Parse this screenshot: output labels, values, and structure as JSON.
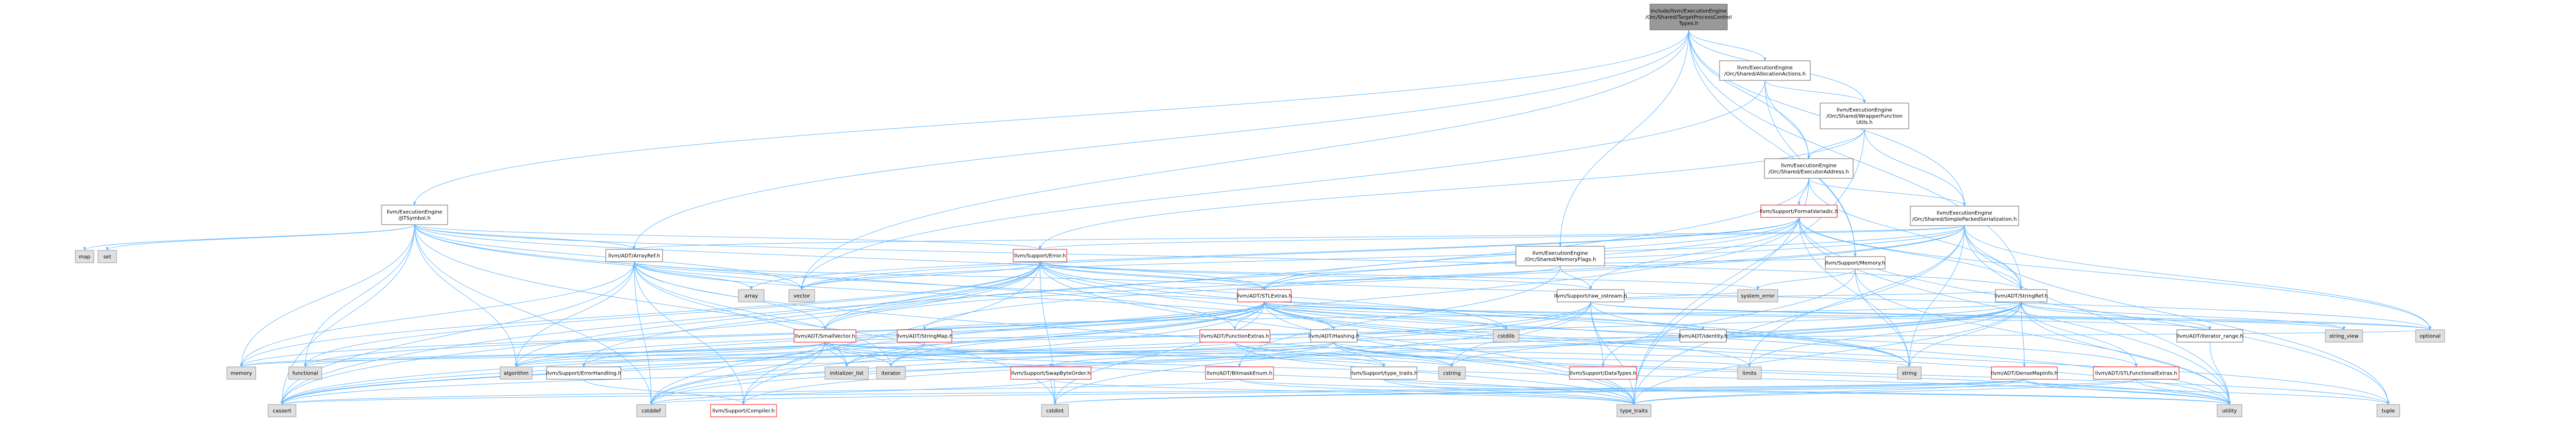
{
  "graph": {
    "colors": {
      "root_fill": "#999999",
      "node_fill": "#ffffff",
      "node_border": "#666666",
      "red_border": "#ff0000",
      "system_fill": "#e0e0e0",
      "system_border": "#999999",
      "edge": "#63b8ff"
    },
    "nodes": [
      {
        "id": "root",
        "label": "include/llvm/ExecutionEngine\n/Orc/Shared/TargetProcessControl\nTypes.h",
        "kind": "root"
      },
      {
        "id": "alloc",
        "label": "llvm/ExecutionEngine\n/Orc/Shared/AllocationActions.h",
        "kind": "normal"
      },
      {
        "id": "wrapper",
        "label": "llvm/ExecutionEngine\n/Orc/Shared/WrapperFunction\nUtils.h",
        "kind": "normal"
      },
      {
        "id": "execaddr",
        "label": "llvm/ExecutionEngine\n/Orc/Shared/ExecutorAddress.h",
        "kind": "normal"
      },
      {
        "id": "jit",
        "label": "llvm/ExecutionEngine\n/JITSymbol.h",
        "kind": "normal"
      },
      {
        "id": "simplepacked",
        "label": "llvm/ExecutionEngine\n/Orc/Shared/SimplePackedSerialization.h",
        "kind": "normal"
      },
      {
        "id": "memflags",
        "label": "llvm/ExecutionEngine\n/Orc/Shared/MemoryFlags.h",
        "kind": "normal"
      },
      {
        "id": "formatvariadic",
        "label": "llvm/Support/FormatVariadic.h",
        "kind": "red"
      },
      {
        "id": "arrayref",
        "label": "llvm/ADT/ArrayRef.h",
        "kind": "normal"
      },
      {
        "id": "error",
        "label": "llvm/Support/Error.h",
        "kind": "red"
      },
      {
        "id": "stlextras",
        "label": "llvm/ADT/STLExtras.h",
        "kind": "red"
      },
      {
        "id": "rawostream",
        "label": "llvm/Support/raw_ostream.h",
        "kind": "normal"
      },
      {
        "id": "memory",
        "label": "llvm/Support/Memory.h",
        "kind": "normal"
      },
      {
        "id": "stringref",
        "label": "llvm/ADT/StringRef.h",
        "kind": "normal"
      },
      {
        "id": "smallvector",
        "label": "llvm/ADT/SmallVector.h",
        "kind": "red"
      },
      {
        "id": "stringmap",
        "label": "llvm/ADT/StringMap.h",
        "kind": "red"
      },
      {
        "id": "functionextras",
        "label": "llvm/ADT/FunctionExtras.h",
        "kind": "red"
      },
      {
        "id": "hashing",
        "label": "llvm/ADT/Hashing.h",
        "kind": "normal"
      },
      {
        "id": "identity",
        "label": "llvm/ADT/identity.h",
        "kind": "normal"
      },
      {
        "id": "iteratorrange",
        "label": "llvm/ADT/iterator_range.h",
        "kind": "normal"
      },
      {
        "id": "errorhandling",
        "label": "llvm/Support/ErrorHandling.h",
        "kind": "normal"
      },
      {
        "id": "swapbyteorder",
        "label": "llvm/Support/SwapByteOrder.h",
        "kind": "red"
      },
      {
        "id": "bitmaskenum",
        "label": "llvm/ADT/BitmaskEnum.h",
        "kind": "red"
      },
      {
        "id": "typetraits",
        "label": "llvm/Support/type_traits.h",
        "kind": "normal"
      },
      {
        "id": "datatypes",
        "label": "llvm/Support/DataTypes.h",
        "kind": "red"
      },
      {
        "id": "densemapinfo",
        "label": "llvm/ADT/DenseMapInfo.h",
        "kind": "red"
      },
      {
        "id": "stlfunctional",
        "label": "llvm/ADT/STLFunctionalExtras.h",
        "kind": "red"
      },
      {
        "id": "compiler",
        "label": "llvm/Support/Compiler.h",
        "kind": "red"
      },
      {
        "id": "sys_map",
        "label": "map",
        "kind": "system"
      },
      {
        "id": "sys_set",
        "label": "set",
        "kind": "system"
      },
      {
        "id": "sys_array",
        "label": "array",
        "kind": "system"
      },
      {
        "id": "sys_vector",
        "label": "vector",
        "kind": "system"
      },
      {
        "id": "sys_memory",
        "label": "memory",
        "kind": "system"
      },
      {
        "id": "sys_functional",
        "label": "functional",
        "kind": "system"
      },
      {
        "id": "sys_algorithm",
        "label": "algorithm",
        "kind": "system"
      },
      {
        "id": "sys_initlist",
        "label": "initializer_list",
        "kind": "system"
      },
      {
        "id": "sys_iterator",
        "label": "iterator",
        "kind": "system"
      },
      {
        "id": "sys_cassert",
        "label": "cassert",
        "kind": "system"
      },
      {
        "id": "sys_cstddef",
        "label": "cstddef",
        "kind": "system"
      },
      {
        "id": "sys_cstdint",
        "label": "cstdint",
        "kind": "system"
      },
      {
        "id": "sys_cstring",
        "label": "cstring",
        "kind": "system"
      },
      {
        "id": "sys_cstdlib",
        "label": "cstdlib",
        "kind": "system"
      },
      {
        "id": "sys_limits",
        "label": "limits",
        "kind": "system"
      },
      {
        "id": "sys_systemerror",
        "label": "system_error",
        "kind": "system"
      },
      {
        "id": "sys_string",
        "label": "string",
        "kind": "system"
      },
      {
        "id": "sys_typetraits",
        "label": "type_traits",
        "kind": "system"
      },
      {
        "id": "sys_utility",
        "label": "utility",
        "kind": "system"
      },
      {
        "id": "sys_tuple",
        "label": "tuple",
        "kind": "system"
      },
      {
        "id": "sys_stringview",
        "label": "string_view",
        "kind": "system"
      },
      {
        "id": "sys_optional",
        "label": "optional",
        "kind": "system"
      }
    ],
    "edges": [
      [
        "root",
        "alloc"
      ],
      [
        "root",
        "wrapper"
      ],
      [
        "root",
        "execaddr"
      ],
      [
        "root",
        "jit"
      ],
      [
        "root",
        "simplepacked"
      ],
      [
        "root",
        "memflags"
      ],
      [
        "root",
        "arrayref"
      ],
      [
        "root",
        "memory"
      ],
      [
        "root",
        "stringref"
      ],
      [
        "root",
        "sys_vector"
      ],
      [
        "alloc",
        "execaddr"
      ],
      [
        "alloc",
        "wrapper"
      ],
      [
        "alloc",
        "memory"
      ],
      [
        "alloc",
        "sys_vector"
      ],
      [
        "wrapper",
        "execaddr"
      ],
      [
        "wrapper",
        "simplepacked"
      ],
      [
        "wrapper",
        "error"
      ],
      [
        "wrapper",
        "sys_typetraits"
      ],
      [
        "execaddr",
        "formatvariadic"
      ],
      [
        "execaddr",
        "simplepacked"
      ],
      [
        "execaddr",
        "stringref"
      ],
      [
        "execaddr",
        "sys_cassert"
      ],
      [
        "execaddr",
        "sys_typetraits"
      ],
      [
        "jit",
        "sys_map"
      ],
      [
        "jit",
        "sys_set"
      ],
      [
        "jit",
        "sys_memory"
      ],
      [
        "jit",
        "sys_functional"
      ],
      [
        "jit",
        "sys_algorithm"
      ],
      [
        "jit",
        "sys_cassert"
      ],
      [
        "jit",
        "sys_cstddef"
      ],
      [
        "jit",
        "sys_cstdint"
      ],
      [
        "jit",
        "sys_string"
      ],
      [
        "jit",
        "sys_vector"
      ],
      [
        "jit",
        "error"
      ],
      [
        "jit",
        "stlextras"
      ],
      [
        "jit",
        "stringref"
      ],
      [
        "jit",
        "arrayref"
      ],
      [
        "jit",
        "functionextras"
      ],
      [
        "simplepacked",
        "error"
      ],
      [
        "simplepacked",
        "stringmap"
      ],
      [
        "simplepacked",
        "stlextras"
      ],
      [
        "simplepacked",
        "smallvector"
      ],
      [
        "simplepacked",
        "stringref"
      ],
      [
        "simplepacked",
        "arrayref"
      ],
      [
        "simplepacked",
        "sys_string"
      ],
      [
        "simplepacked",
        "sys_tuple"
      ],
      [
        "simplepacked",
        "sys_typetraits"
      ],
      [
        "simplepacked",
        "sys_utility"
      ],
      [
        "simplepacked",
        "sys_vector"
      ],
      [
        "simplepacked",
        "sys_optional"
      ],
      [
        "simplepacked",
        "sys_limits"
      ],
      [
        "memflags",
        "stlextras"
      ],
      [
        "memflags",
        "bitmaskenum"
      ],
      [
        "memflags",
        "rawostream"
      ],
      [
        "memflags",
        "memory"
      ],
      [
        "formatvariadic",
        "stlextras"
      ],
      [
        "formatvariadic",
        "smallvector"
      ],
      [
        "formatvariadic",
        "stringref"
      ],
      [
        "formatvariadic",
        "rawostream"
      ],
      [
        "formatvariadic",
        "sys_array"
      ],
      [
        "formatvariadic",
        "sys_cstddef"
      ],
      [
        "formatvariadic",
        "sys_optional"
      ],
      [
        "formatvariadic",
        "sys_string"
      ],
      [
        "formatvariadic",
        "sys_tuple"
      ],
      [
        "formatvariadic",
        "sys_utility"
      ],
      [
        "formatvariadic",
        "sys_vector"
      ],
      [
        "arrayref",
        "hashing"
      ],
      [
        "arrayref",
        "smallvector"
      ],
      [
        "arrayref",
        "stlextras"
      ],
      [
        "arrayref",
        "compiler"
      ],
      [
        "arrayref",
        "sys_algorithm"
      ],
      [
        "arrayref",
        "sys_array"
      ],
      [
        "arrayref",
        "sys_cassert"
      ],
      [
        "arrayref",
        "sys_cstddef"
      ],
      [
        "arrayref",
        "sys_initlist"
      ],
      [
        "arrayref",
        "sys_iterator"
      ],
      [
        "arrayref",
        "sys_memory"
      ],
      [
        "arrayref",
        "sys_typetraits"
      ],
      [
        "arrayref",
        "sys_vector"
      ],
      [
        "error",
        "stlextras"
      ],
      [
        "error",
        "smallvector"
      ],
      [
        "error",
        "errorhandling"
      ],
      [
        "error",
        "rawostream"
      ],
      [
        "error",
        "compiler"
      ],
      [
        "error",
        "sys_algorithm"
      ],
      [
        "error",
        "sys_cassert"
      ],
      [
        "error",
        "sys_cstdint"
      ],
      [
        "error",
        "sys_cstdlib"
      ],
      [
        "error",
        "sys_functional"
      ],
      [
        "error",
        "sys_memory"
      ],
      [
        "error",
        "sys_optional"
      ],
      [
        "error",
        "sys_string"
      ],
      [
        "error",
        "sys_systemerror"
      ],
      [
        "error",
        "sys_typetraits"
      ],
      [
        "error",
        "sys_utility"
      ],
      [
        "error",
        "sys_vector"
      ],
      [
        "stlextras",
        "hashing"
      ],
      [
        "stlextras",
        "identity"
      ],
      [
        "stlextras",
        "iteratorrange"
      ],
      [
        "stlextras",
        "stlfunctional"
      ],
      [
        "stlextras",
        "errorhandling"
      ],
      [
        "stlextras",
        "sys_algorithm"
      ],
      [
        "stlextras",
        "sys_cassert"
      ],
      [
        "stlextras",
        "sys_cstddef"
      ],
      [
        "stlextras",
        "sys_cstdint"
      ],
      [
        "stlextras",
        "sys_cstdlib"
      ],
      [
        "stlextras",
        "sys_functional"
      ],
      [
        "stlextras",
        "sys_initlist"
      ],
      [
        "stlextras",
        "sys_iterator"
      ],
      [
        "stlextras",
        "sys_limits"
      ],
      [
        "stlextras",
        "sys_memory"
      ],
      [
        "stlextras",
        "sys_optional"
      ],
      [
        "stlextras",
        "sys_tuple"
      ],
      [
        "stlextras",
        "sys_typetraits"
      ],
      [
        "stlextras",
        "sys_utility"
      ],
      [
        "rawostream",
        "stringref"
      ],
      [
        "rawostream",
        "datatypes"
      ],
      [
        "rawostream",
        "sys_cassert"
      ],
      [
        "rawostream",
        "sys_cstddef"
      ],
      [
        "rawostream",
        "sys_cstdint"
      ],
      [
        "rawostream",
        "sys_cstring"
      ],
      [
        "rawostream",
        "sys_optional"
      ],
      [
        "rawostream",
        "sys_string"
      ],
      [
        "rawostream",
        "sys_stringview"
      ],
      [
        "rawostream",
        "sys_systemerror"
      ],
      [
        "rawostream",
        "sys_typetraits"
      ],
      [
        "memory",
        "datatypes"
      ],
      [
        "memory",
        "sys_string"
      ],
      [
        "memory",
        "sys_systemerror"
      ],
      [
        "memory",
        "sys_utility"
      ],
      [
        "stringref",
        "densemapinfo"
      ],
      [
        "stringref",
        "iteratorrange"
      ],
      [
        "stringref",
        "stlfunctional"
      ],
      [
        "stringref",
        "compiler"
      ],
      [
        "stringref",
        "sys_algorithm"
      ],
      [
        "stringref",
        "sys_cassert"
      ],
      [
        "stringref",
        "sys_cstddef"
      ],
      [
        "stringref",
        "sys_cstring"
      ],
      [
        "stringref",
        "sys_limits"
      ],
      [
        "stringref",
        "sys_string"
      ],
      [
        "stringref",
        "sys_stringview"
      ],
      [
        "stringref",
        "sys_typetraits"
      ],
      [
        "stringref",
        "sys_utility"
      ],
      [
        "smallvector",
        "compiler"
      ],
      [
        "smallvector",
        "typetraits"
      ],
      [
        "smallvector",
        "sys_algorithm"
      ],
      [
        "smallvector",
        "sys_cassert"
      ],
      [
        "smallvector",
        "sys_cstddef"
      ],
      [
        "smallvector",
        "sys_cstdlib"
      ],
      [
        "smallvector",
        "sys_cstring"
      ],
      [
        "smallvector",
        "sys_functional"
      ],
      [
        "smallvector",
        "sys_initlist"
      ],
      [
        "smallvector",
        "sys_iterator"
      ],
      [
        "smallvector",
        "sys_limits"
      ],
      [
        "smallvector",
        "sys_memory"
      ],
      [
        "smallvector",
        "sys_typetraits"
      ],
      [
        "smallvector",
        "sys_utility"
      ],
      [
        "stringmap",
        "stringref"
      ],
      [
        "stringmap",
        "sys_initlist"
      ],
      [
        "stringmap",
        "sys_iterator"
      ],
      [
        "functionextras",
        "stlextras"
      ],
      [
        "functionextras",
        "typetraits"
      ],
      [
        "functionextras",
        "sys_cstring"
      ],
      [
        "functionextras",
        "sys_memory"
      ],
      [
        "functionextras",
        "sys_typetraits"
      ],
      [
        "hashing",
        "errorhandling"
      ],
      [
        "hashing",
        "swapbyteorder"
      ],
      [
        "hashing",
        "typetraits"
      ],
      [
        "hashing",
        "sys_algorithm"
      ],
      [
        "hashing",
        "sys_cassert"
      ],
      [
        "hashing",
        "sys_cstring"
      ],
      [
        "hashing",
        "sys_optional"
      ],
      [
        "hashing",
        "sys_string"
      ],
      [
        "hashing",
        "sys_tuple"
      ],
      [
        "hashing",
        "sys_utility"
      ],
      [
        "iteratorrange",
        "sys_utility"
      ],
      [
        "errorhandling",
        "compiler"
      ],
      [
        "swapbyteorder",
        "sys_cstddef"
      ],
      [
        "swapbyteorder",
        "sys_cstdint"
      ],
      [
        "swapbyteorder",
        "sys_typetraits"
      ],
      [
        "bitmaskenum",
        "sys_cassert"
      ],
      [
        "bitmaskenum",
        "sys_typetraits"
      ],
      [
        "bitmaskenum",
        "sys_utility"
      ],
      [
        "typetraits",
        "sys_typetraits"
      ],
      [
        "typetraits",
        "sys_utility"
      ],
      [
        "densemapinfo",
        "sys_cassert"
      ],
      [
        "densemapinfo",
        "sys_cstddef"
      ],
      [
        "densemapinfo",
        "sys_cstdint"
      ],
      [
        "densemapinfo",
        "sys_tuple"
      ],
      [
        "densemapinfo",
        "sys_typetraits"
      ],
      [
        "densemapinfo",
        "sys_utility"
      ],
      [
        "stlfunctional",
        "sys_cstdint"
      ],
      [
        "stlfunctional",
        "sys_typetraits"
      ],
      [
        "stlfunctional",
        "sys_utility"
      ]
    ]
  }
}
